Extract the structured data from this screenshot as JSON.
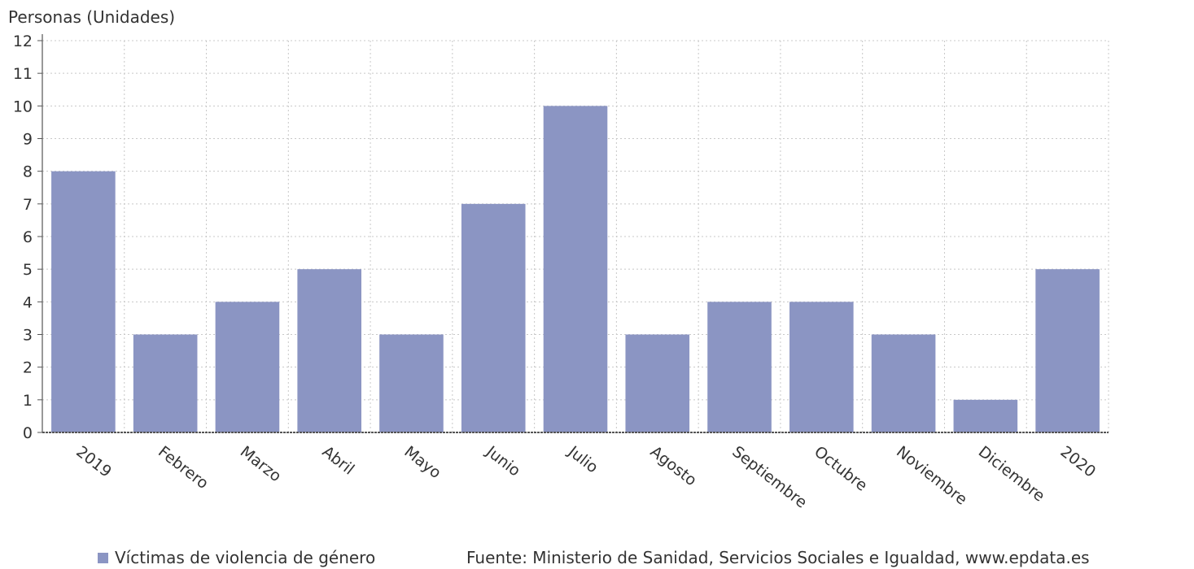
{
  "chart_data": {
    "type": "bar",
    "ylabel": "Personas (Unidades)",
    "xlabel": "",
    "categories": [
      "2019",
      "Febrero",
      "Marzo",
      "Abril",
      "Mayo",
      "Junio",
      "Julio",
      "Agosto",
      "Septiembre",
      "Octubre",
      "Noviembre",
      "Diciembre",
      "2020"
    ],
    "series": [
      {
        "name": "Víctimas de violencia de género",
        "values": [
          8,
          3,
          4,
          5,
          3,
          7,
          10,
          3,
          4,
          4,
          3,
          1,
          5
        ],
        "color": "#8b95c3"
      }
    ],
    "ylim": [
      0,
      12
    ],
    "yticks": [
      "0",
      "1",
      "2",
      "3",
      "4",
      "5",
      "6",
      "7",
      "8",
      "9",
      "10",
      "11",
      "12"
    ],
    "grid": true,
    "legend_position": "bottom-left"
  },
  "legend": {
    "label": "Víctimas de violencia de género",
    "color": "#8b95c3"
  },
  "source": "Fuente: Ministerio de Sanidad, Servicios Sociales e Igualdad, www.epdata.es"
}
